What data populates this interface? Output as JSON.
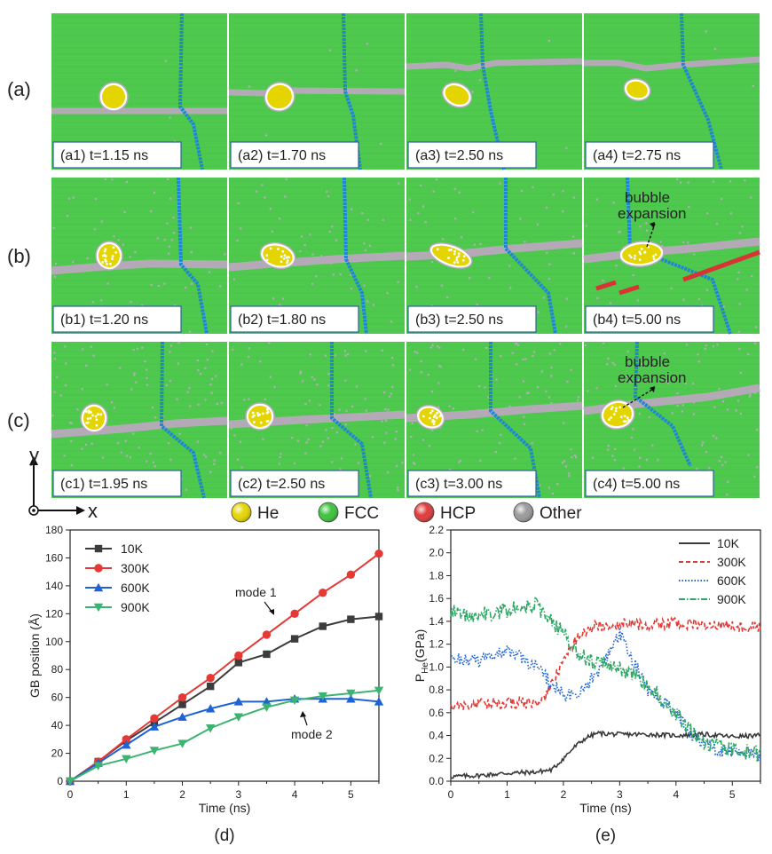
{
  "row_labels": [
    "(a)",
    "(b)",
    "(c)"
  ],
  "panels": [
    [
      {
        "id": "a1",
        "label": "(a1) t=1.15 ns"
      },
      {
        "id": "a2",
        "label": "(a2) t=1.70 ns"
      },
      {
        "id": "a3",
        "label": "(a3) t=2.50 ns"
      },
      {
        "id": "a4",
        "label": "(a4) t=2.75 ns"
      }
    ],
    [
      {
        "id": "b1",
        "label": "(b1) t=1.20 ns"
      },
      {
        "id": "b2",
        "label": "(b2) t=1.80 ns"
      },
      {
        "id": "b3",
        "label": "(b3) t=2.50 ns"
      },
      {
        "id": "b4",
        "label": "(b4) t=5.00 ns"
      }
    ],
    [
      {
        "id": "c1",
        "label": "(c1) t=1.95 ns"
      },
      {
        "id": "c2",
        "label": "(c2) t=2.50 ns"
      },
      {
        "id": "c3",
        "label": "(c3) t=3.00 ns"
      },
      {
        "id": "c4",
        "label": "(c4) t=5.00 ns"
      }
    ]
  ],
  "annotations": {
    "b4": [
      "bubble",
      "expansion"
    ],
    "c4": [
      "bubble",
      "expansion"
    ]
  },
  "axes_indicator": {
    "y": "y",
    "x": "x"
  },
  "atom_legend": [
    {
      "name": "He",
      "color": "#e6d600"
    },
    {
      "name": "FCC",
      "color": "#3cc43c"
    },
    {
      "name": "HCP",
      "color": "#e03a3a"
    },
    {
      "name": "Other",
      "color": "#9a9a9a"
    }
  ],
  "colors": {
    "fcc": "#4ec94e",
    "gb": "#b9a9bd",
    "twin": "#1f86d6",
    "hcp": "#d93434",
    "he": "#e4d400"
  },
  "chart_data": [
    {
      "type": "line",
      "panel_label": "(d)",
      "xlabel": "Time (ns)",
      "ylabel": "GB position (Å)",
      "xlim": [
        0,
        5.5
      ],
      "ylim": [
        0,
        180
      ],
      "xticks": [
        0,
        1,
        2,
        3,
        4,
        5
      ],
      "yticks": [
        0,
        20,
        40,
        60,
        80,
        100,
        120,
        140,
        160,
        180
      ],
      "x": [
        0,
        0.5,
        1,
        1.5,
        2,
        2.5,
        3,
        3.5,
        4,
        4.5,
        5,
        5.5
      ],
      "series": [
        {
          "name": "10K",
          "color": "#3c3c3c",
          "marker": "square",
          "values": [
            0,
            14,
            29,
            42,
            55,
            68,
            85,
            91,
            102,
            111,
            116,
            118
          ]
        },
        {
          "name": "300K",
          "color": "#e53935",
          "marker": "circle",
          "values": [
            0,
            14,
            30,
            45,
            60,
            74,
            90,
            105,
            120,
            135,
            148,
            163
          ]
        },
        {
          "name": "600K",
          "color": "#1e63d6",
          "marker": "triangle-up",
          "values": [
            0,
            13,
            26,
            39,
            46,
            52,
            57,
            57,
            59,
            59,
            59,
            57
          ]
        },
        {
          "name": "900K",
          "color": "#3cb371",
          "marker": "triangle-down",
          "values": [
            0,
            11,
            16,
            22,
            27,
            38,
            46,
            53,
            58,
            61,
            63,
            65
          ]
        }
      ],
      "annotations": [
        {
          "text": "mode 1",
          "x": 3.7,
          "y": 118
        },
        {
          "text": "mode 2",
          "x": 4.1,
          "y": 57
        }
      ]
    },
    {
      "type": "line",
      "panel_label": "(e)",
      "xlabel": "Time (ns)",
      "ylabel_main": "P",
      "ylabel_sub": "He",
      "ylabel_unit": "(GPa)",
      "xlim": [
        0,
        5.5
      ],
      "ylim": [
        0,
        2.2
      ],
      "xticks": [
        0,
        1,
        2,
        3,
        4,
        5
      ],
      "yticks": [
        0,
        0.2,
        0.4,
        0.6,
        0.8,
        1.0,
        1.2,
        1.4,
        1.6,
        1.8,
        2.0,
        2.2
      ],
      "ytick_labels": [
        "0.0",
        "0.2",
        "0.4",
        "0.6",
        "0.8",
        "1.0",
        "1.2",
        "1.4",
        "1.6",
        "1.8",
        "2.0",
        "2.2"
      ],
      "series": [
        {
          "name": "10K",
          "color": "#3a3a3a",
          "dash": "solid",
          "t": [
            0,
            0.5,
            1,
            1.5,
            1.8,
            2.0,
            2.2,
            2.4,
            2.6,
            3.0,
            3.5,
            4.0,
            4.5,
            5.0,
            5.5
          ],
          "p": [
            0.04,
            0.05,
            0.07,
            0.08,
            0.1,
            0.2,
            0.3,
            0.38,
            0.42,
            0.41,
            0.41,
            0.4,
            0.41,
            0.39,
            0.4
          ],
          "noise": 0.02
        },
        {
          "name": "300K",
          "color": "#e53935",
          "dash": "5,3",
          "t": [
            0,
            0.5,
            1,
            1.5,
            1.7,
            1.9,
            2.1,
            2.3,
            2.6,
            3.0,
            3.5,
            4.0,
            4.5,
            5.0,
            5.5
          ],
          "p": [
            0.66,
            0.67,
            0.69,
            0.68,
            0.75,
            0.95,
            1.15,
            1.3,
            1.36,
            1.38,
            1.37,
            1.38,
            1.37,
            1.36,
            1.35
          ],
          "noise": 0.05
        },
        {
          "name": "600K",
          "color": "#1e63d6",
          "dash": "1.5,2",
          "t": [
            0,
            0.5,
            1,
            1.5,
            1.7,
            2.0,
            2.3,
            2.6,
            3.0,
            3.2,
            3.5,
            4.0,
            4.3,
            4.6,
            5.0,
            5.5
          ],
          "p": [
            1.08,
            1.05,
            1.15,
            1.0,
            0.9,
            0.75,
            0.78,
            0.95,
            1.3,
            1.1,
            0.8,
            0.6,
            0.4,
            0.3,
            0.25,
            0.22
          ],
          "noise": 0.06
        },
        {
          "name": "900K",
          "color": "#2fa865",
          "dash": "7,2,1.5,2",
          "t": [
            0,
            0.5,
            1,
            1.5,
            1.8,
            2.0,
            2.2,
            2.5,
            3.0,
            3.5,
            4.0,
            4.3,
            4.6,
            5.0,
            5.5
          ],
          "p": [
            1.48,
            1.45,
            1.5,
            1.55,
            1.4,
            1.3,
            1.15,
            1.05,
            1.0,
            0.85,
            0.6,
            0.42,
            0.32,
            0.27,
            0.24
          ],
          "noise": 0.07
        }
      ]
    }
  ]
}
